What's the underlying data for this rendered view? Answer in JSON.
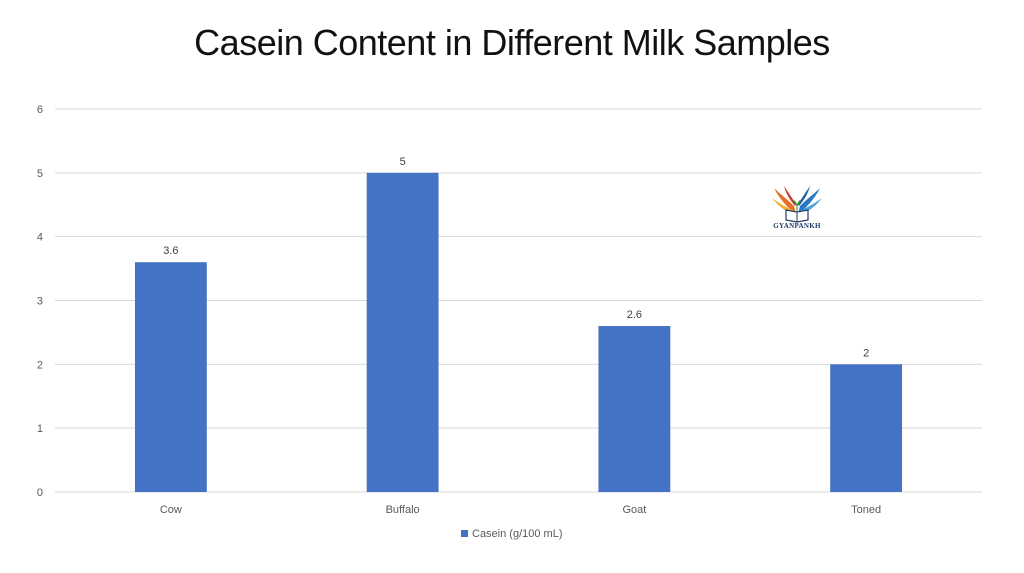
{
  "colors": {
    "bar": "#4472C4",
    "grid": "#D9D9D9",
    "text": "#595959"
  },
  "logo": {
    "text": "GYANPANKH",
    "icon": "winged-book-logo-icon"
  },
  "chart_data": {
    "type": "bar",
    "title": "Casein Content in Different Milk Samples",
    "categories": [
      "Cow",
      "Buffalo",
      "Goat",
      "Toned"
    ],
    "series": [
      {
        "name": "Casein (g/100 mL)",
        "values": [
          3.6,
          5,
          2.6,
          2
        ],
        "data_labels": [
          "3.6",
          "5",
          "2.6",
          "2"
        ]
      }
    ],
    "ylim": [
      0,
      6
    ],
    "yticks": [
      0,
      1,
      2,
      3,
      4,
      5,
      6
    ],
    "grid": true,
    "legend": "bottom"
  }
}
